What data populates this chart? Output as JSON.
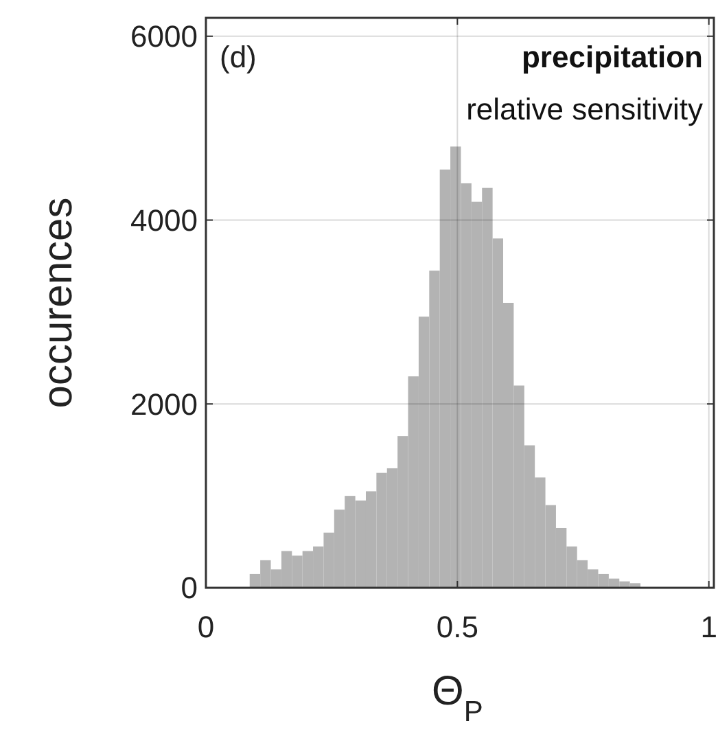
{
  "chart_data": {
    "type": "histogram",
    "xlabel": "Θ$_{P}$",
    "ylabel": "occurences",
    "annotations": [
      "(d)",
      "precipitation",
      "relative sensitivity"
    ],
    "bins": [
      0.087,
      0.108,
      0.129,
      0.15,
      0.171,
      0.192,
      0.213,
      0.234,
      0.255,
      0.276,
      0.297,
      0.318,
      0.339,
      0.36,
      0.381,
      0.402,
      0.423,
      0.444,
      0.465,
      0.486,
      0.507,
      0.528,
      0.549,
      0.57,
      0.591,
      0.612,
      0.633,
      0.654,
      0.675,
      0.696,
      0.717,
      0.738,
      0.759,
      0.78,
      0.801,
      0.822,
      0.843,
      0.864
    ],
    "values": [
      150,
      300,
      200,
      400,
      350,
      400,
      450,
      600,
      850,
      1000,
      950,
      1050,
      1250,
      1300,
      1650,
      2300,
      2950,
      3450,
      4550,
      4800,
      4400,
      4200,
      4350,
      3800,
      3100,
      2200,
      1550,
      1200,
      900,
      650,
      450,
      300,
      200,
      150,
      100,
      70,
      50
    ],
    "color": "#b3b3b3",
    "xlim": [
      0,
      1.01
    ],
    "ylim": [
      0,
      6200
    ],
    "xticks": [
      0,
      0.5,
      1
    ],
    "yticks": [
      0,
      2000,
      4000,
      6000
    ],
    "grid": true
  }
}
